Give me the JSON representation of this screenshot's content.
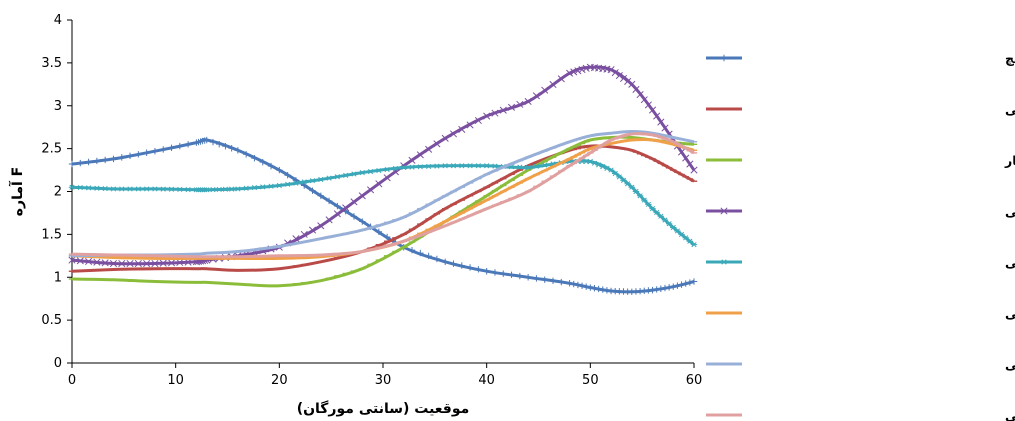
{
  "chart_data": {
    "type": "line",
    "xlabel": "موقعیت (سانتی مورگان)",
    "ylabel": "آماره F",
    "xlim": [
      0,
      60
    ],
    "ylim": [
      0,
      4
    ],
    "x_ticks": [
      "0",
      "10",
      "20",
      "30",
      "40",
      "50",
      "60"
    ],
    "y_ticks": [
      "0",
      "0.5",
      "1",
      "1.5",
      "2",
      "2.5",
      "3",
      "3.5",
      "4"
    ],
    "grid": false,
    "legend_position": "right",
    "x": [
      0,
      4,
      8,
      12,
      13,
      16,
      20,
      24,
      28,
      32,
      36,
      40,
      44,
      48,
      50,
      52,
      54,
      56,
      58,
      60
    ],
    "series": [
      {
        "name": "وزن هچ",
        "color": "#4a78b8",
        "marker": "plus",
        "values": [
          2.32,
          2.38,
          2.47,
          2.57,
          2.6,
          2.48,
          2.25,
          1.95,
          1.65,
          1.35,
          1.18,
          1.07,
          1.0,
          0.93,
          0.88,
          0.84,
          0.83,
          0.85,
          0.89,
          0.95
        ]
      },
      {
        "name": "وزن سه هفتگی",
        "color": "#b94a48",
        "marker": "dash",
        "values": [
          1.07,
          1.09,
          1.1,
          1.1,
          1.1,
          1.08,
          1.1,
          1.18,
          1.3,
          1.5,
          1.8,
          2.05,
          2.3,
          2.48,
          2.53,
          2.52,
          2.48,
          2.38,
          2.25,
          2.12
        ]
      },
      {
        "name": "وزن قبل از کشتار",
        "color": "#8bbd3a",
        "marker": "dash",
        "values": [
          0.98,
          0.97,
          0.95,
          0.94,
          0.94,
          0.92,
          0.9,
          0.96,
          1.1,
          1.35,
          1.65,
          1.95,
          2.25,
          2.5,
          2.6,
          2.63,
          2.63,
          2.6,
          2.57,
          2.55
        ]
      },
      {
        "name": "میانگین افزایش وزن روزانه دو تا سه هفتگی",
        "color": "#7a4fa0",
        "marker": "x",
        "values": [
          1.2,
          1.16,
          1.16,
          1.18,
          1.2,
          1.25,
          1.35,
          1.6,
          1.95,
          2.3,
          2.62,
          2.88,
          3.05,
          3.38,
          3.45,
          3.42,
          3.25,
          2.95,
          2.6,
          2.25
        ]
      },
      {
        "name": "نسبت کلیبر دو تا سه هفتگی",
        "color": "#3aa8b8",
        "marker": "star",
        "values": [
          2.05,
          2.03,
          2.03,
          2.02,
          2.02,
          2.03,
          2.07,
          2.14,
          2.22,
          2.28,
          2.3,
          2.3,
          2.28,
          2.35,
          2.35,
          2.25,
          2.05,
          1.8,
          1.58,
          1.38
        ]
      },
      {
        "name": "وزن پنج هفتگی",
        "color": "#f0a048",
        "marker": "dash",
        "values": [
          1.25,
          1.23,
          1.22,
          1.22,
          1.22,
          1.22,
          1.22,
          1.24,
          1.3,
          1.42,
          1.65,
          1.9,
          2.15,
          2.38,
          2.5,
          2.56,
          2.6,
          2.6,
          2.55,
          2.48
        ]
      },
      {
        "name": "وزن چهار هفتگی",
        "color": "#98b0d8",
        "marker": "dash",
        "values": [
          1.25,
          1.26,
          1.26,
          1.27,
          1.28,
          1.3,
          1.36,
          1.45,
          1.55,
          1.7,
          1.95,
          2.2,
          2.4,
          2.58,
          2.65,
          2.68,
          2.7,
          2.68,
          2.63,
          2.58
        ]
      },
      {
        "name": "میانگین افزایش وزن روزانه هچ تا پنج هفتگی",
        "color": "#e0a0a0",
        "marker": "dash",
        "values": [
          1.27,
          1.26,
          1.25,
          1.24,
          1.24,
          1.24,
          1.25,
          1.26,
          1.3,
          1.42,
          1.6,
          1.8,
          2.0,
          2.3,
          2.45,
          2.6,
          2.67,
          2.66,
          2.58,
          2.45
        ]
      }
    ]
  }
}
